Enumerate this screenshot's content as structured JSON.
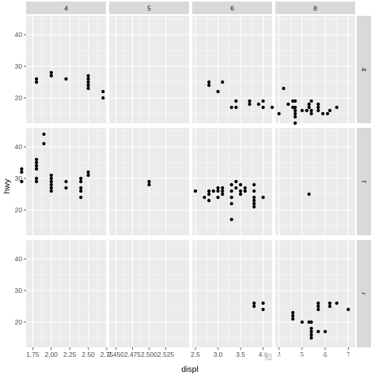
{
  "chart_data": {
    "type": "scatter",
    "xlabel": "displ",
    "ylabel": "hwy",
    "facet_cols_label": [
      "4",
      "5",
      "6",
      "8"
    ],
    "facet_rows_label": [
      "4",
      "f",
      "r"
    ],
    "grid": true,
    "scales": "free_x",
    "ylim": [
      12,
      46
    ],
    "yticks": [
      20,
      30,
      40
    ],
    "column_x_axes": [
      {
        "xlim": [
          1.66,
          2.74
        ],
        "ticks": [
          1.75,
          2.0,
          2.25,
          2.5,
          2.75
        ],
        "tick_labels": [
          "1.75",
          "2.00",
          "2.25",
          "2.50",
          "2.75"
        ]
      },
      {
        "xlim": [
          2.44,
          2.56
        ],
        "ticks": [
          2.45,
          2.475,
          2.5,
          2.525
        ],
        "tick_labels": [
          "2.450",
          "2.475",
          "2.500",
          "2.525"
        ]
      },
      {
        "xlim": [
          2.43,
          4.2
        ],
        "ticks": [
          2.5,
          3.0,
          3.5,
          4.0
        ],
        "tick_labels": [
          "2.5",
          "3.0",
          "3.5",
          "4.0"
        ]
      },
      {
        "xlim": [
          3.84,
          7.3
        ],
        "ticks": [
          4,
          5,
          6,
          7
        ],
        "tick_labels": [
          "4",
          "5",
          "6",
          "7"
        ]
      }
    ],
    "panels": [
      {
        "cyl": "4",
        "drv": "4",
        "points": [
          [
            1.8,
            26
          ],
          [
            1.8,
            25
          ],
          [
            2.0,
            28
          ],
          [
            2.0,
            27
          ],
          [
            2.2,
            26
          ],
          [
            2.5,
            27
          ],
          [
            2.5,
            26
          ],
          [
            2.5,
            25
          ],
          [
            2.5,
            24
          ],
          [
            2.5,
            23
          ],
          [
            2.7,
            22
          ],
          [
            2.7,
            20
          ]
        ]
      },
      {
        "cyl": "5",
        "drv": "4",
        "points": []
      },
      {
        "cyl": "6",
        "drv": "4",
        "points": [
          [
            2.8,
            25
          ],
          [
            2.8,
            24
          ],
          [
            3.1,
            25
          ],
          [
            3.0,
            22
          ],
          [
            3.3,
            17
          ],
          [
            3.4,
            17
          ],
          [
            3.4,
            19
          ],
          [
            3.7,
            19
          ],
          [
            3.7,
            18
          ],
          [
            4.0,
            17
          ],
          [
            4.0,
            19
          ],
          [
            4.2,
            17
          ],
          [
            3.9,
            18
          ]
        ]
      },
      {
        "cyl": "8",
        "drv": "4",
        "points": [
          [
            4.0,
            15
          ],
          [
            4.2,
            23
          ],
          [
            4.4,
            18
          ],
          [
            4.6,
            19
          ],
          [
            4.6,
            17
          ],
          [
            4.7,
            19
          ],
          [
            4.7,
            17
          ],
          [
            4.7,
            16
          ],
          [
            4.7,
            15
          ],
          [
            4.7,
            14
          ],
          [
            4.7,
            12
          ],
          [
            5.0,
            16
          ],
          [
            5.2,
            16
          ],
          [
            5.3,
            17
          ],
          [
            5.3,
            18
          ],
          [
            5.4,
            15
          ],
          [
            5.4,
            16
          ],
          [
            5.4,
            19
          ],
          [
            5.7,
            16
          ],
          [
            5.7,
            17
          ],
          [
            5.7,
            18
          ],
          [
            5.9,
            15
          ],
          [
            6.1,
            15
          ],
          [
            6.2,
            16
          ],
          [
            6.5,
            17
          ]
        ]
      },
      {
        "cyl": "4",
        "drv": "f",
        "points": [
          [
            1.6,
            33
          ],
          [
            1.6,
            32
          ],
          [
            1.6,
            29
          ],
          [
            1.8,
            36
          ],
          [
            1.8,
            35
          ],
          [
            1.8,
            34
          ],
          [
            1.8,
            33
          ],
          [
            1.8,
            30
          ],
          [
            1.8,
            29
          ],
          [
            1.9,
            44
          ],
          [
            1.9,
            41
          ],
          [
            2.0,
            31
          ],
          [
            2.0,
            30
          ],
          [
            2.0,
            29
          ],
          [
            2.0,
            28
          ],
          [
            2.0,
            27
          ],
          [
            2.0,
            26
          ],
          [
            2.2,
            29
          ],
          [
            2.2,
            27
          ],
          [
            2.4,
            30
          ],
          [
            2.4,
            29
          ],
          [
            2.4,
            27
          ],
          [
            2.4,
            26
          ],
          [
            2.4,
            24
          ],
          [
            2.5,
            32
          ],
          [
            2.5,
            31
          ]
        ]
      },
      {
        "cyl": "5",
        "drv": "f",
        "points": [
          [
            2.5,
            29
          ],
          [
            2.5,
            28
          ]
        ]
      },
      {
        "cyl": "6",
        "drv": "f",
        "points": [
          [
            2.5,
            26
          ],
          [
            2.7,
            24
          ],
          [
            2.8,
            25
          ],
          [
            2.8,
            26
          ],
          [
            2.8,
            23
          ],
          [
            2.9,
            26
          ],
          [
            3.0,
            26
          ],
          [
            3.0,
            27
          ],
          [
            3.0,
            24
          ],
          [
            3.1,
            27
          ],
          [
            3.1,
            26
          ],
          [
            3.1,
            25
          ],
          [
            3.3,
            28
          ],
          [
            3.3,
            26
          ],
          [
            3.3,
            24
          ],
          [
            3.3,
            22
          ],
          [
            3.3,
            17
          ],
          [
            3.4,
            27
          ],
          [
            3.4,
            29
          ],
          [
            3.5,
            28
          ],
          [
            3.5,
            26
          ],
          [
            3.5,
            25
          ],
          [
            3.6,
            27
          ],
          [
            3.6,
            26
          ],
          [
            3.8,
            28
          ],
          [
            3.8,
            26
          ],
          [
            3.8,
            24
          ],
          [
            3.8,
            23
          ],
          [
            3.8,
            22
          ],
          [
            3.8,
            21
          ],
          [
            4.0,
            24
          ]
        ]
      },
      {
        "cyl": "8",
        "drv": "f",
        "points": [
          [
            5.3,
            25
          ]
        ]
      },
      {
        "cyl": "4",
        "drv": "r",
        "points": []
      },
      {
        "cyl": "5",
        "drv": "r",
        "points": []
      },
      {
        "cyl": "6",
        "drv": "r",
        "points": [
          [
            3.8,
            26
          ],
          [
            3.8,
            25
          ],
          [
            4.0,
            26
          ],
          [
            4.0,
            24
          ]
        ]
      },
      {
        "cyl": "8",
        "drv": "r",
        "points": [
          [
            4.6,
            23
          ],
          [
            4.6,
            22
          ],
          [
            4.6,
            21
          ],
          [
            5.0,
            20
          ],
          [
            5.3,
            20
          ],
          [
            5.4,
            20
          ],
          [
            5.4,
            18
          ],
          [
            5.4,
            17
          ],
          [
            5.4,
            16
          ],
          [
            5.4,
            15
          ],
          [
            5.7,
            26
          ],
          [
            5.7,
            25
          ],
          [
            5.7,
            24
          ],
          [
            5.7,
            17
          ],
          [
            6.0,
            17
          ],
          [
            6.2,
            26
          ],
          [
            6.2,
            25
          ],
          [
            6.5,
            26
          ],
          [
            7.0,
            24
          ]
        ]
      }
    ]
  },
  "colors": {
    "panel_background": "#ebebeb",
    "grid_line": "#ffffff",
    "strip_background": "#d9d9d9",
    "point": "#000000"
  },
  "watermark": {
    "text": "知乎 @刘写字的地方",
    "icon": "zhihu-logo"
  }
}
